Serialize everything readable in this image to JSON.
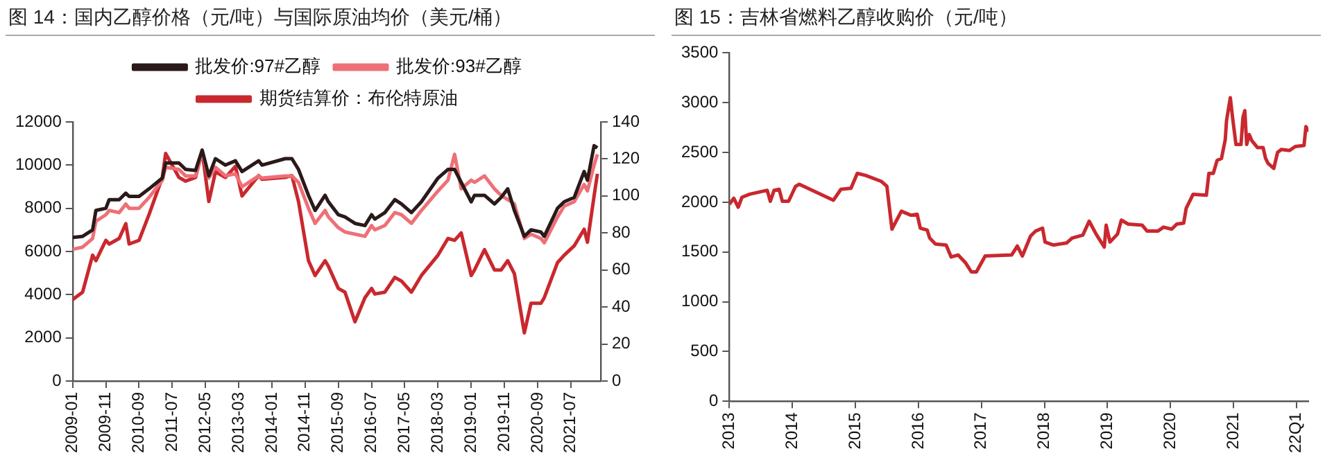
{
  "chart_data": [
    {
      "type": "line",
      "title": "图 14：国内乙醇价格（元/吨）与国际原油均价（美元/桶）",
      "x": [
        "2009-01",
        "2009-04",
        "2009-07",
        "2009-08",
        "2009-11",
        "2009-12",
        "2010-03",
        "2010-05",
        "2010-06",
        "2010-09",
        "2010-12",
        "2011-04",
        "2011-05",
        "2011-09",
        "2011-11",
        "2012-02",
        "2012-04",
        "2012-06",
        "2012-08",
        "2012-11",
        "2013-02",
        "2013-04",
        "2013-09",
        "2013-10",
        "2014-05",
        "2014-07",
        "2014-09",
        "2014-12",
        "2015-02",
        "2015-05",
        "2015-06",
        "2015-09",
        "2015-11",
        "2016-02",
        "2016-05",
        "2016-07",
        "2016-08",
        "2016-11",
        "2017-02",
        "2017-04",
        "2017-07",
        "2017-10",
        "2018-03",
        "2018-06",
        "2018-08",
        "2018-10",
        "2019-01",
        "2019-02",
        "2019-05",
        "2019-08",
        "2019-10",
        "2019-12",
        "2020-02",
        "2020-05",
        "2020-07",
        "2020-10",
        "2020-11",
        "2021-03",
        "2021-05",
        "2021-08",
        "2021-11",
        "2021-12",
        "2022-02",
        "2022-03"
      ],
      "series": [
        {
          "name": "批发价:97#乙醇",
          "color": "#2a1a1a",
          "values": [
            6650,
            6700,
            7000,
            7900,
            8000,
            8400,
            8400,
            8700,
            8550,
            8550,
            8900,
            9400,
            10100,
            10100,
            9800,
            9750,
            10700,
            9500,
            10300,
            10000,
            10200,
            9700,
            10200,
            10000,
            10300,
            10300,
            9800,
            8600,
            7900,
            8600,
            8300,
            7700,
            7600,
            7300,
            7200,
            7700,
            7500,
            7800,
            8400,
            8200,
            7800,
            8300,
            9400,
            9800,
            9800,
            9200,
            8300,
            8600,
            8600,
            8200,
            8500,
            8900,
            7900,
            6700,
            7000,
            6900,
            6700,
            8000,
            8300,
            8500,
            9700,
            9300,
            10900,
            10800
          ]
        },
        {
          "name": "批发价:93#乙醇",
          "color": "#ee7077",
          "values": [
            6100,
            6200,
            6600,
            7400,
            7700,
            7900,
            7800,
            8200,
            8000,
            8000,
            8500,
            9300,
            9900,
            9800,
            9500,
            9500,
            10600,
            9400,
            9900,
            9500,
            9600,
            9000,
            9500,
            9400,
            9500,
            9500,
            9200,
            8000,
            7300,
            7900,
            7600,
            7100,
            6900,
            6800,
            6700,
            7200,
            7000,
            7200,
            7800,
            7700,
            7300,
            7900,
            8800,
            9300,
            10500,
            8900,
            9300,
            9200,
            9500,
            8900,
            8600,
            8400,
            8200,
            6600,
            6800,
            6600,
            6400,
            7600,
            8100,
            8300,
            9100,
            8800,
            10000,
            10500
          ]
        },
        {
          "name": "期货结算价：布伦特原油",
          "color": "#c9282e",
          "axis": "y2",
          "values": [
            44,
            48,
            68,
            65,
            76,
            74,
            77,
            85,
            74,
            76,
            90,
            110,
            123,
            110,
            108,
            110,
            124,
            97,
            113,
            110,
            116,
            100,
            111,
            109,
            110,
            111,
            97,
            65,
            57,
            65,
            62,
            50,
            48,
            32,
            45,
            50,
            47,
            48,
            56,
            54,
            48,
            57,
            68,
            77,
            76,
            80,
            57,
            60,
            71,
            60,
            60,
            65,
            58,
            26,
            42,
            42,
            45,
            64,
            68,
            73,
            82,
            75,
            100,
            112
          ]
        }
      ],
      "xlim": [
        "2009-01",
        "2022-04"
      ],
      "xticks": [
        "2009-01",
        "2009-11",
        "2010-09",
        "2011-07",
        "2012-05",
        "2013-03",
        "2014-01",
        "2014-11",
        "2015-09",
        "2016-07",
        "2017-05",
        "2018-03",
        "2019-01",
        "2019-11",
        "2020-09",
        "2021-07"
      ],
      "ylim": [
        0,
        12000
      ],
      "yticks": [
        0,
        2000,
        4000,
        6000,
        8000,
        10000,
        12000
      ],
      "y2lim": [
        0,
        140
      ],
      "y2ticks": [
        0,
        20,
        40,
        60,
        80,
        100,
        120,
        140
      ],
      "legend": "top"
    },
    {
      "type": "line",
      "title": "图 15：吉林省燃料乙醇收购价（元/吨）",
      "x": [
        2013.0,
        2013.07,
        2013.14,
        2013.2,
        2013.32,
        2013.6,
        2013.65,
        2013.71,
        2013.79,
        2013.84,
        2013.94,
        2014.05,
        2014.11,
        2014.65,
        2014.77,
        2014.93,
        2015.03,
        2015.16,
        2015.41,
        2015.5,
        2015.58,
        2015.73,
        2015.88,
        2015.98,
        2016.03,
        2016.14,
        2016.18,
        2016.27,
        2016.44,
        2016.52,
        2016.63,
        2016.75,
        2016.84,
        2016.92,
        2017.06,
        2017.48,
        2017.57,
        2017.65,
        2017.78,
        2017.86,
        2017.97,
        2018.01,
        2018.14,
        2018.35,
        2018.44,
        2018.61,
        2018.71,
        2018.82,
        2018.91,
        2018.95,
        2018.98,
        2019.04,
        2019.16,
        2019.22,
        2019.33,
        2019.55,
        2019.63,
        2019.8,
        2019.89,
        2020.02,
        2020.1,
        2020.21,
        2020.25,
        2020.36,
        2020.57,
        2020.61,
        2020.68,
        2020.74,
        2020.81,
        2020.87,
        2020.89,
        2020.95,
        2020.99,
        2021.04,
        2021.12,
        2021.15,
        2021.18,
        2021.21,
        2021.25,
        2021.29,
        2021.38,
        2021.47,
        2021.51,
        2021.55,
        2021.64,
        2021.7,
        2021.76,
        2021.89,
        2021.98,
        2022.12,
        2022.15,
        2022.19
      ],
      "series": [
        {
          "color": "#c9282e",
          "values": [
            1980,
            2040,
            1950,
            2050,
            2080,
            2120,
            2010,
            2120,
            2130,
            2010,
            2010,
            2160,
            2180,
            2020,
            2130,
            2140,
            2290,
            2270,
            2210,
            2160,
            1730,
            1910,
            1870,
            1880,
            1740,
            1720,
            1640,
            1580,
            1570,
            1450,
            1470,
            1390,
            1300,
            1300,
            1460,
            1470,
            1560,
            1460,
            1660,
            1710,
            1740,
            1600,
            1570,
            1590,
            1640,
            1670,
            1810,
            1680,
            1590,
            1550,
            1770,
            1600,
            1680,
            1820,
            1780,
            1770,
            1710,
            1710,
            1750,
            1730,
            1780,
            1790,
            1940,
            2080,
            2070,
            2290,
            2290,
            2420,
            2440,
            2630,
            2820,
            3050,
            2830,
            2580,
            2580,
            2850,
            2920,
            2580,
            2680,
            2620,
            2550,
            2550,
            2440,
            2390,
            2340,
            2500,
            2530,
            2520,
            2560,
            2570,
            2760,
            2710
          ]
        }
      ],
      "xlim": [
        2013,
        2022.19
      ],
      "xticks": [
        2013,
        2014,
        2015,
        2016,
        2017,
        2018,
        2019,
        2020,
        2021,
        {
          "value": 2022,
          "label": "22Q1"
        }
      ],
      "ylim": [
        0,
        3500
      ],
      "yticks": [
        0,
        500,
        1000,
        1500,
        2000,
        2500,
        3000,
        3500
      ]
    }
  ]
}
